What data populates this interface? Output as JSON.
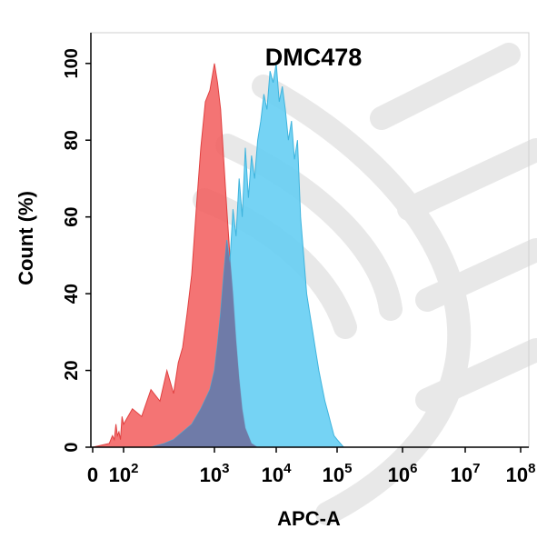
{
  "chart_data": {
    "type": "area",
    "title": "DMC478",
    "xlabel": "APC-A",
    "ylabel": "Count  (%)",
    "x_scale": "log",
    "xlim": [
      1,
      100000000
    ],
    "ylim": [
      0,
      108
    ],
    "x_ticks": [
      {
        "value": 1,
        "base": "0",
        "exp": ""
      },
      {
        "value": 100,
        "base": "10",
        "exp": "2"
      },
      {
        "value": 1000,
        "base": "10",
        "exp": "3"
      },
      {
        "value": 10000,
        "base": "10",
        "exp": "4"
      },
      {
        "value": 100000,
        "base": "10",
        "exp": "5"
      },
      {
        "value": 1000000,
        "base": "10",
        "exp": "6"
      },
      {
        "value": 10000000,
        "base": "10",
        "exp": "7"
      },
      {
        "value": 100000000,
        "base": "10",
        "exp": "8"
      }
    ],
    "y_ticks": [
      0,
      20,
      40,
      60,
      80,
      100
    ],
    "grid": false,
    "series": [
      {
        "color": "#f25c5c",
        "x": [
          1,
          12,
          19,
          25,
          32,
          40,
          50,
          63,
          79,
          100,
          125,
          158,
          200,
          251,
          300,
          355,
          400,
          447,
          501,
          562,
          631,
          708,
          794,
          891,
          1000,
          1122,
          1259,
          1413,
          1585,
          1778,
          1995,
          2239,
          2512,
          2818,
          3162,
          3981,
          5000
        ],
        "values": [
          0,
          1,
          3,
          2,
          6,
          3,
          4,
          2,
          8,
          6,
          10,
          8,
          15,
          12,
          20,
          14,
          22,
          26,
          35,
          45,
          62,
          78,
          90,
          93,
          100,
          95,
          88,
          75,
          62,
          50,
          40,
          28,
          18,
          10,
          5,
          1,
          0
        ]
      },
      {
        "color": "#62cdf2",
        "x": [
          1,
          100,
          200,
          282,
          355,
          447,
          562,
          708,
          891,
          1000,
          1122,
          1259,
          1413,
          1585,
          1778,
          1995,
          2239,
          2512,
          2818,
          3162,
          3548,
          3981,
          4467,
          5012,
          5623,
          6310,
          7079,
          7943,
          8913,
          10000,
          11220,
          12589,
          14125,
          15849,
          17783,
          19953,
          22387,
          25119,
          28184,
          31623,
          35481,
          39811,
          44668,
          50119,
          56234,
          63096,
          70795,
          79433,
          89125,
          100000,
          112202,
          125893
        ],
        "values": [
          0,
          0,
          0,
          1,
          2,
          4,
          6,
          10,
          15,
          20,
          27,
          35,
          45,
          54,
          48,
          62,
          55,
          70,
          60,
          78,
          65,
          76,
          70,
          80,
          85,
          92,
          88,
          98,
          95,
          100,
          90,
          94,
          88,
          80,
          85,
          75,
          80,
          60,
          50,
          40,
          35,
          30,
          25,
          20,
          16,
          12,
          9,
          6,
          3,
          2,
          1,
          0
        ]
      }
    ],
    "overlap_color": "#6f7ba8"
  }
}
